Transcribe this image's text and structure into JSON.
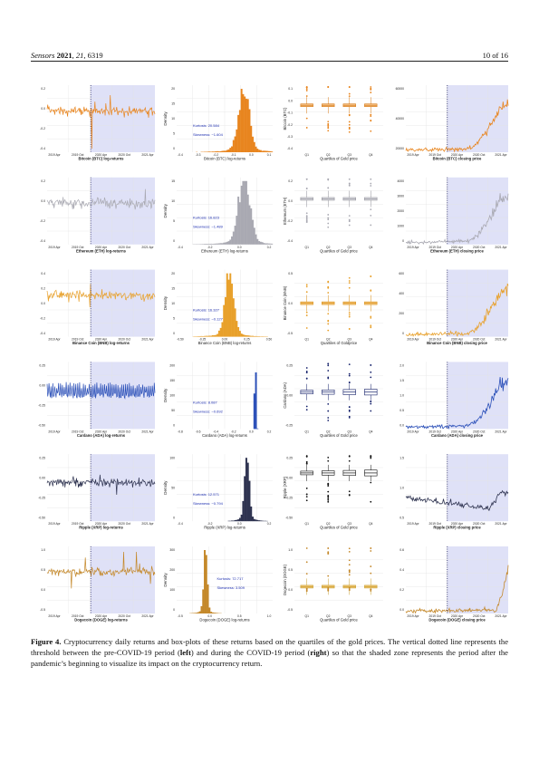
{
  "header": {
    "journal": "Sensors",
    "year": "2021",
    "volume": "21",
    "article": "6319",
    "page": "10 of 16"
  },
  "figure": {
    "caption_label": "Figure 4.",
    "caption_text_1": " Cryptocurrency daily returns and box-plots of these returns based on the quartiles of the gold prices. The vertical dotted line represents the threshold between the pre-COVID-19 period (",
    "caption_left": "left",
    "caption_text_2": ") and during the COVID-19 period (",
    "caption_right": "right",
    "caption_text_3": ") so that the shaded zone represents the period after the pandemic’s beginning to visualize its impact on the cryptocurrency return.",
    "colors": {
      "shade": "#dfe1f7",
      "threshold": "#2a2a6a",
      "grid": "#e3e3e3",
      "box_fill": "#f5c98a"
    },
    "x_date_ticks": [
      "2019 Apr",
      "2019 Oct",
      "2020 Apr",
      "2020 Oct",
      "2021 Apr"
    ],
    "quartile_ticks": [
      "Q1",
      "Q2",
      "Q3",
      "Q4"
    ],
    "threshold_date": "2020-01-01",
    "rows": [
      {
        "coin": "Bitcoin (BTC)",
        "color": "#e8851f",
        "box_fill": "#f6c48a",
        "box_stroke": "#d77a16",
        "ret_title": "Bitcoin (BTC) log-returns",
        "ret_yticks": [
          "0.2",
          "0.0",
          "-0.2",
          "-0.4"
        ],
        "density_ylabel": "Density",
        "density_title": "Bitcoin (BTC) log-returns",
        "density_yticks": [
          "20",
          "15",
          "10",
          "5",
          "0"
        ],
        "density_xticks": [
          "-0.4",
          "-0.3",
          "-0.2",
          "-0.1",
          "0.0",
          "0.1"
        ],
        "kurtosis_label": "Kurtosis:",
        "kurtosis": "20.584",
        "skewness_label": "Skewness:",
        "skewness": "−1.604",
        "box_ylabel": "Bitcoin (BTC)",
        "box_xlabel": "Quartiles of Gold price",
        "box_yticks": [
          "0.1",
          "0.0",
          "-0.1",
          "-0.2",
          "-0.3",
          "-0.4"
        ],
        "price_title": "Bitcoin (BTC) closing price",
        "price_yticks": [
          "60000",
          "40000",
          "20000"
        ]
      },
      {
        "coin": "Ethereum (ETH)",
        "color": "#a9a9b2",
        "box_fill": "#e9e9ee",
        "box_stroke": "#8f8f98",
        "ret_title": "Ethereum (ETH) log-returns",
        "ret_yticks": [
          "0.2",
          "0.0",
          "-0.2",
          "-0.4"
        ],
        "density_ylabel": "Density",
        "density_title": "Ethereum (ETH) log-returns",
        "density_yticks": [
          "15",
          "10",
          "5",
          "0"
        ],
        "density_xticks": [
          "-0.4",
          "-0.2",
          "0.0",
          "0.2"
        ],
        "kurtosis_label": "Kurtosis:",
        "kurtosis": "16.823",
        "skewness_label": "Skewness:",
        "skewness": "−1.489",
        "box_ylabel": "Ethereum (ETH)",
        "box_xlabel": "Quartiles of Gold price",
        "box_yticks": [
          "0.2",
          "0.0",
          "-0.2",
          "-0.4"
        ],
        "price_title": "Ethereum (ETH) closing price",
        "price_yticks": [
          "4000",
          "3000",
          "2000",
          "1000",
          "0"
        ]
      },
      {
        "coin": "Binance Coin (BNB)",
        "color": "#e8a02a",
        "box_fill": "#f7d08d",
        "box_stroke": "#d98c12",
        "ret_title": "Binance Coin (BNB) log-returns",
        "ret_yticks": [
          "0.4",
          "0.2",
          "0.0",
          "-0.2",
          "-0.4"
        ],
        "density_ylabel": "Density",
        "density_title": "Binance Coin (BNB) log-returns",
        "density_yticks": [
          "20",
          "15",
          "10",
          "5",
          "0"
        ],
        "density_xticks": [
          "-0.50",
          "-0.25",
          "0.00",
          "0.25",
          "0.50"
        ],
        "kurtosis_label": "Kurtosis:",
        "kurtosis": "16.327",
        "skewness_label": "Skewness:",
        "skewness": "−0.127",
        "box_ylabel": "Binance Coin (BNB)",
        "box_xlabel": "Quartiles of Goldprice",
        "box_yticks": [
          "0.5",
          "0.0",
          "-0.5"
        ],
        "price_title": "Binance Coin (BNB) closing price",
        "price_yticks": [
          "600",
          "400",
          "200",
          "0"
        ]
      },
      {
        "coin": "Cardano (ADA)",
        "color": "#2a4fb8",
        "box_fill": "#ffffff",
        "box_stroke": "#14206a",
        "ret_title": "Cardano (ADA) log-returns",
        "ret_yticks": [
          "0.25",
          "0.00",
          "-0.25",
          "-0.50"
        ],
        "density_ylabel": "Density",
        "density_title": "Cardano (ADA) log-returns",
        "density_yticks": [
          "200",
          "150",
          "100",
          "50",
          "0"
        ],
        "density_xticks": [
          "-0.8",
          "-0.6",
          "-0.4",
          "-0.2",
          "0.0",
          "0.2"
        ],
        "kurtosis_label": "Kurtosis:",
        "kurtosis": "8.087",
        "skewness_label": "Skewness:",
        "skewness": "−0.692",
        "box_ylabel": "Cardano (ADA)",
        "box_xlabel": "Quartiles of Gold price",
        "box_yticks": [
          "0.25",
          "0.00",
          "-0.25"
        ],
        "price_title": "Cardano (ADA) closing price",
        "price_yticks": [
          "2.0",
          "1.5",
          "1.0",
          "0.5",
          "0.0"
        ]
      },
      {
        "coin": "Ripple (XRP)",
        "color": "#2e3350",
        "box_fill": "#ffffff",
        "box_stroke": "#111111",
        "ret_title": "Ripple (XRP) log-returns",
        "ret_yticks": [
          "0.25",
          "0.00",
          "-0.25",
          "-0.50"
        ],
        "density_ylabel": "Density",
        "density_title": "Ripple (XRP) log-returns",
        "density_yticks": [
          "100",
          "50",
          "0"
        ],
        "density_xticks": [
          "-0.4",
          "-0.2",
          "0.0",
          "0.2"
        ],
        "kurtosis_label": "Kurtosis:",
        "kurtosis": "12.571",
        "skewness_label": "Skewness:",
        "skewness": "−0.794",
        "box_ylabel": "Ripple (XRP)",
        "box_xlabel": "Quartiles of Gold price",
        "box_yticks": [
          "0.25",
          "0.00",
          "-0.25",
          "-0.50"
        ],
        "price_title": "Ripple (XRP) closing price",
        "price_yticks": [
          "1.5",
          "1.0",
          "0.5"
        ]
      },
      {
        "coin": "Dogecoin (DOGE)",
        "color": "#c4882a",
        "box_fill": "#f3c878",
        "box_stroke": "#c9a032",
        "ret_title": "Dogecoin (DOGE) log-returns",
        "ret_yticks": [
          "1.0",
          "0.5",
          "0.0",
          "-0.5"
        ],
        "density_ylabel": "Density",
        "density_title": "Dogecoin (DOGE) log-returns",
        "density_yticks": [
          "300",
          "200",
          "100",
          "0"
        ],
        "density_xticks": [
          "-0.5",
          "0.0",
          "0.5",
          "1.0"
        ],
        "kurtosis_label": "Kurtosis:",
        "kurtosis": "72.717",
        "skewness_label": "Skewness:",
        "skewness": "3.509",
        "box_ylabel": "Dogecoin (DOGE)",
        "box_xlabel": "Quartiles of Gold price",
        "box_yticks": [
          "1.0",
          "0.5",
          "0.0",
          "-0.5"
        ],
        "price_title": "Dogecoin (DOGE) closing price",
        "price_yticks": [
          "0.6",
          "0.4",
          "0.2",
          "0.0"
        ]
      }
    ]
  }
}
